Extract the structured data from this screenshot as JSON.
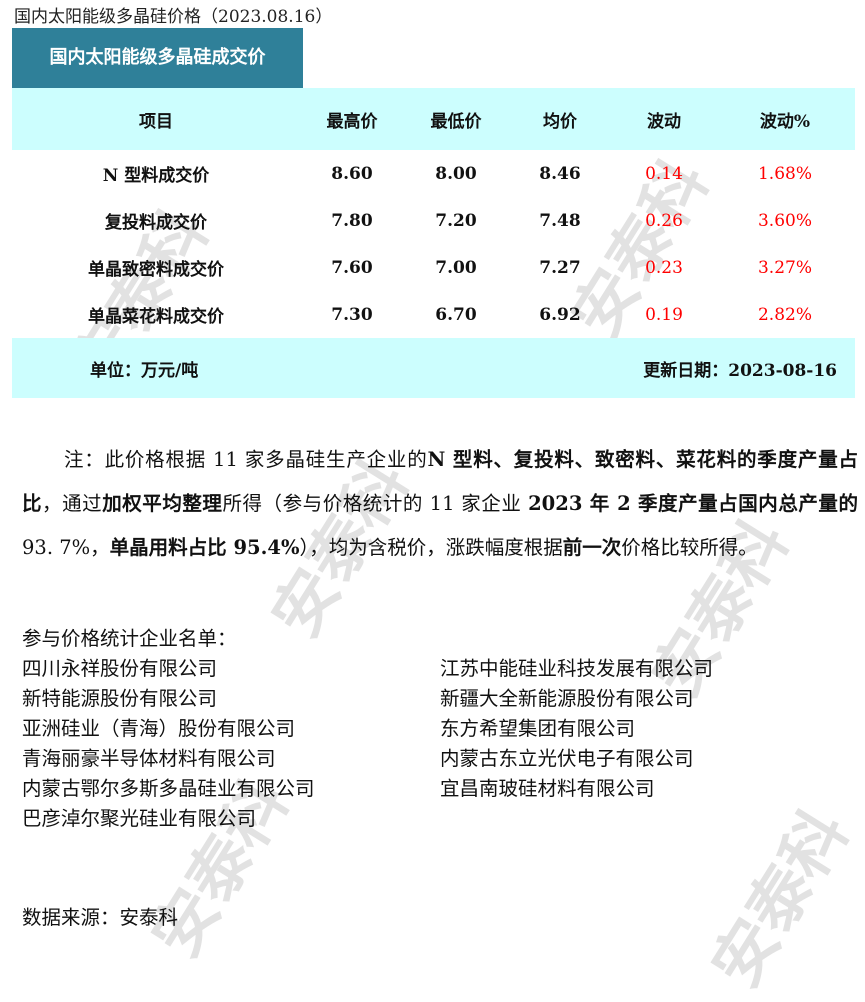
{
  "title": "国内太阳能级多晶硅价格（2023.08.16）",
  "table_title": "国内太阳能级多晶硅成交价",
  "table": {
    "headers": [
      "项目",
      "最高价",
      "最低价",
      "均价",
      "波动",
      "波动%"
    ],
    "rows": [
      [
        "N 型料成交价",
        "8.60",
        "8.00",
        "8.46",
        "0.14",
        "1.68%"
      ],
      [
        "复投料成交价",
        "7.80",
        "7.20",
        "7.48",
        "0.26",
        "3.60%"
      ],
      [
        "单晶致密料成交价",
        "7.60",
        "7.00",
        "7.27",
        "0.23",
        "3.27%"
      ],
      [
        "单晶菜花料成交价",
        "7.30",
        "6.70",
        "6.92",
        "0.19",
        "2.82%"
      ]
    ],
    "unit": "单位：万元/吨",
    "update": "更新日期：2023-08-16"
  },
  "note": [
    {
      "t": "注：此价格根据 11 家多晶硅生产企业的",
      "b": false
    },
    {
      "t": "N 型料、复投料、致密料、菜花料的季度产量占比",
      "b": true
    },
    {
      "t": "，通过",
      "b": false
    },
    {
      "t": "加权平均整理",
      "b": true
    },
    {
      "t": "所得（参与价格统计的 11 家企业 ",
      "b": false
    },
    {
      "t": "2023 年 2 季度产量占国内总产量的",
      "b": true
    },
    {
      "t": " 93. 7%，",
      "b": false
    },
    {
      "t": "单晶用料占比 95.4%",
      "b": true
    },
    {
      "t": "），均为含税价，涨跌幅度根据",
      "b": false
    },
    {
      "t": "前一次",
      "b": true
    },
    {
      "t": "价格比较所得。",
      "b": false
    }
  ],
  "companies_label": "参与价格统计企业名单：",
  "companies_left": [
    "四川永祥股份有限公司",
    "新特能源股份有限公司",
    "亚洲硅业（青海）股份有限公司",
    "青海丽豪半导体材料有限公司",
    "内蒙古鄂尔多斯多晶硅业有限公司",
    "巴彦淖尔聚光硅业有限公司"
  ],
  "companies_right": [
    "江苏中能硅业科技发展有限公司",
    "新疆大全新能源股份有限公司",
    "东方希望集团有限公司",
    "内蒙古东立光伏电子有限公司",
    "宜昌南玻硅材料有限公司"
  ],
  "source": "数据来源：安泰科",
  "watermark": "安泰科",
  "colors": {
    "header": "#2f8099",
    "table_band": "#ccfefe",
    "change": "#ff0000"
  }
}
